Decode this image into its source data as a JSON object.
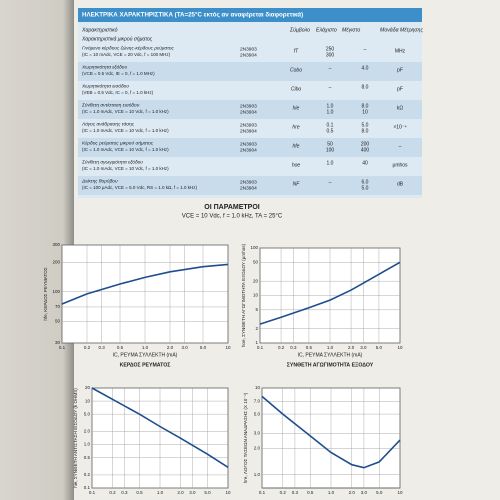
{
  "table": {
    "header": "ΗΛΕΚΤΡΙΚΑ ΧΑΡΑΚΤΗΡΙΣΤΙΚΑ (TA=25°C εκτός αν αναφέρεται διαφορετικά)",
    "columns": [
      "Χαρακτηριστικό",
      "Σύμβολο",
      "Ελάχιστο",
      "Μέγιστο",
      "Μονάδα Μέτρησης"
    ],
    "section": "Χαρακτηριστικά μικρού σήματος",
    "rows": [
      {
        "label": "Γινόμενο κέρδους ζώνης-κέρδους ρεύματος",
        "condition": "(IC = 10 mAdc, VCE = 20 Vdc, f = 100 MHz)",
        "devices": [
          "2N3903",
          "2N3904"
        ],
        "symbol": "fT",
        "min": [
          "250",
          "300"
        ],
        "max": [
          "–"
        ],
        "unit": "MHz"
      },
      {
        "label": "Χωρητικότητα εξόδου",
        "condition": "(VCB = 0.5 Vdc, IE = 0, f = 1.0 MHz)",
        "devices": [],
        "symbol": "Cobo",
        "min": [
          "–"
        ],
        "max": [
          "4.0"
        ],
        "unit": "pF"
      },
      {
        "label": "Χωρητικότητα εισόδου",
        "condition": "(VEB = 0.5 Vdc, IC = 0, f = 1.0 kHz)",
        "devices": [],
        "symbol": "Cibo",
        "min": [
          "–"
        ],
        "max": [
          "8.0"
        ],
        "unit": "pF"
      },
      {
        "label": "Σύνθετη αντίσταση εισόδου",
        "condition": "(IC = 1.0 mAdc, VCE = 10 Vdc, f = 1.0 kHz)",
        "devices": [
          "2N3903",
          "2N3904"
        ],
        "symbol": "hie",
        "min": [
          "1.0",
          "1.0"
        ],
        "max": [
          "8.0",
          "10"
        ],
        "unit": "kΩ"
      },
      {
        "label": "Λόγος ανάδρασης τάσης",
        "condition": "(IC = 1.0 mAdc, VCE = 10 Vdc, f = 1.0 kHz)",
        "devices": [
          "2N3903",
          "2N3904"
        ],
        "symbol": "hre",
        "min": [
          "0.1",
          "0.5"
        ],
        "max": [
          "5.0",
          "8.0"
        ],
        "unit": "×10⁻⁴"
      },
      {
        "label": "Κέρδος ρεύματος μικρού σήματος",
        "condition": "(IC = 1.0 mAdc, VCE = 10 Vdc, f = 1.0 kHz)",
        "devices": [
          "2N3903",
          "2N3904"
        ],
        "symbol": "hfe",
        "min": [
          "50",
          "100"
        ],
        "max": [
          "200",
          "400"
        ],
        "unit": "–"
      },
      {
        "label": "Σύνθετη αγωγιμότητα εξόδου",
        "condition": "(IC = 1.0 mAdc, VCE = 10 Vdc, f = 1.0 kHz)",
        "devices": [],
        "symbol": "hoe",
        "min": [
          "1.0"
        ],
        "max": [
          "40"
        ],
        "unit": "μmhos"
      },
      {
        "label": "Δείκτης θορύβου",
        "condition": "(IC = 100 μAdc, VCE = 5.0 Vdc, RS = 1.0 kΩ, f = 1.0 kHz)",
        "devices": [
          "2N3903",
          "2N3904"
        ],
        "symbol": "NF",
        "min": [
          "–"
        ],
        "max": [
          "6.0",
          "5.0"
        ],
        "unit": "dB"
      }
    ]
  },
  "parameters": {
    "title": "ΟΙ ΠΑΡΑΜΕΤΡΟΙ",
    "conditions": "VCE = 10 Vdc, f = 1.0 kHz, TA = 25°C"
  },
  "charts": [
    {
      "type": "line",
      "title": "ΚΕΡΔΟΣ ΡΕΥΜΑΤΟΣ",
      "xlabel": "IC, ΡΕΥΜΑ ΣΥΛΛΕΚΤΗ (mA)",
      "ylabel": "hfe, ΚΕΡΔΟΣ ΡΕΥΜΑΤΟΣ",
      "x": [
        0.1,
        0.2,
        0.5,
        1,
        2,
        5,
        10
      ],
      "values": [
        75,
        95,
        120,
        140,
        160,
        180,
        190
      ],
      "xlim": [
        0.1,
        10
      ],
      "ylim": [
        30,
        300
      ],
      "xscale": "log",
      "yscale": "log",
      "grid": true,
      "color": "#1f4e8c",
      "xticks": [
        0.1,
        0.2,
        0.3,
        0.5,
        {
          "value": 1,
          "label": "1.0"
        },
        {
          "value": 2,
          "label": "2.0"
        },
        {
          "value": 3,
          "label": "3.0"
        },
        {
          "value": 5,
          "label": "5.0"
        },
        10
      ],
      "yticks": [
        30,
        50,
        70,
        100,
        200,
        300
      ]
    },
    {
      "type": "line",
      "title": "ΣΥΝΘΕΤΗ ΑΓΩΓΙΜΟΤΗΤΑ ΕΞΟΔΟΥ",
      "xlabel": "IC, ΡΕΥΜΑ ΣΥΛΛΕΚΤΗ (mA)",
      "ylabel": "hoe, ΣΥΝΘΕΤΗ ΑΓΩΓΙΜΟΤΗΤΑ ΕΞΟΔΟΥ (μmhos)",
      "x": [
        0.1,
        0.2,
        0.5,
        1,
        2,
        5,
        10
      ],
      "values": [
        2.5,
        3.5,
        5.5,
        8,
        13,
        28,
        50
      ],
      "xlim": [
        0.1,
        10
      ],
      "ylim": [
        1,
        100
      ],
      "xscale": "log",
      "yscale": "log",
      "grid": true,
      "color": "#1f4e8c",
      "xticks": [
        0.1,
        0.2,
        0.3,
        0.5,
        {
          "value": 1,
          "label": "1.0"
        },
        {
          "value": 2,
          "label": "2.0"
        },
        {
          "value": 3,
          "label": "3.0"
        },
        {
          "value": 5,
          "label": "5.0"
        },
        10
      ],
      "yticks": [
        1,
        2,
        5,
        10,
        20,
        50,
        100
      ]
    },
    {
      "type": "line",
      "ylabel": "hie, ΣΥΝΘΕΤΗ ΑΝΤΙΣΤΑΣΗ ΕΙΣΟΔΟΥ (k OHMS)",
      "x": [
        0.1,
        0.2,
        0.5,
        1,
        2,
        5,
        10
      ],
      "values": [
        20,
        11,
        5,
        2.6,
        1.4,
        0.6,
        0.3
      ],
      "xlim": [
        0.1,
        10
      ],
      "ylim": [
        0.1,
        20
      ],
      "xscale": "log",
      "yscale": "log",
      "grid": true,
      "color": "#1f4e8c",
      "xticks": [
        0.1,
        0.2,
        0.3,
        0.5,
        {
          "value": 1,
          "label": "1.0"
        },
        {
          "value": 2,
          "label": "2.0"
        },
        {
          "value": 3,
          "label": "3.0"
        },
        {
          "value": 5,
          "label": "5.0"
        },
        10
      ],
      "yticks": [
        0.1,
        0.2,
        0.5,
        {
          "value": 1,
          "label": "1.0"
        },
        {
          "value": 2,
          "label": "2.0"
        },
        {
          "value": 5,
          "label": "5.0"
        },
        10,
        20
      ]
    },
    {
      "type": "line",
      "ylabel": "hre, ΛΟΓΟΣ ΤΑΣΕΩΝ ΑΝΑΔΡΑΣΗΣ (X 10⁻⁴)",
      "x": [
        0.1,
        0.2,
        0.5,
        1,
        2,
        3,
        5,
        10
      ],
      "values": [
        8,
        5,
        2.8,
        1.8,
        1.3,
        1.2,
        1.4,
        2.5
      ],
      "xlim": [
        0.1,
        10
      ],
      "ylim": [
        0.7,
        10
      ],
      "xscale": "log",
      "yscale": "log",
      "grid": true,
      "color": "#1f4e8c",
      "xticks": [
        0.1,
        0.2,
        0.3,
        0.5,
        {
          "value": 1,
          "label": "1.0"
        },
        {
          "value": 2,
          "label": "2.0"
        },
        {
          "value": 3,
          "label": "3.0"
        },
        {
          "value": 5,
          "label": "5.0"
        },
        10
      ],
      "yticks": [
        {
          "value": 1,
          "label": "1.0"
        },
        {
          "value": 2,
          "label": "2.0"
        },
        {
          "value": 3,
          "label": "3.0"
        },
        {
          "value": 5,
          "label": "5.0"
        },
        {
          "value": 7,
          "label": "7.0"
        },
        10
      ]
    }
  ]
}
